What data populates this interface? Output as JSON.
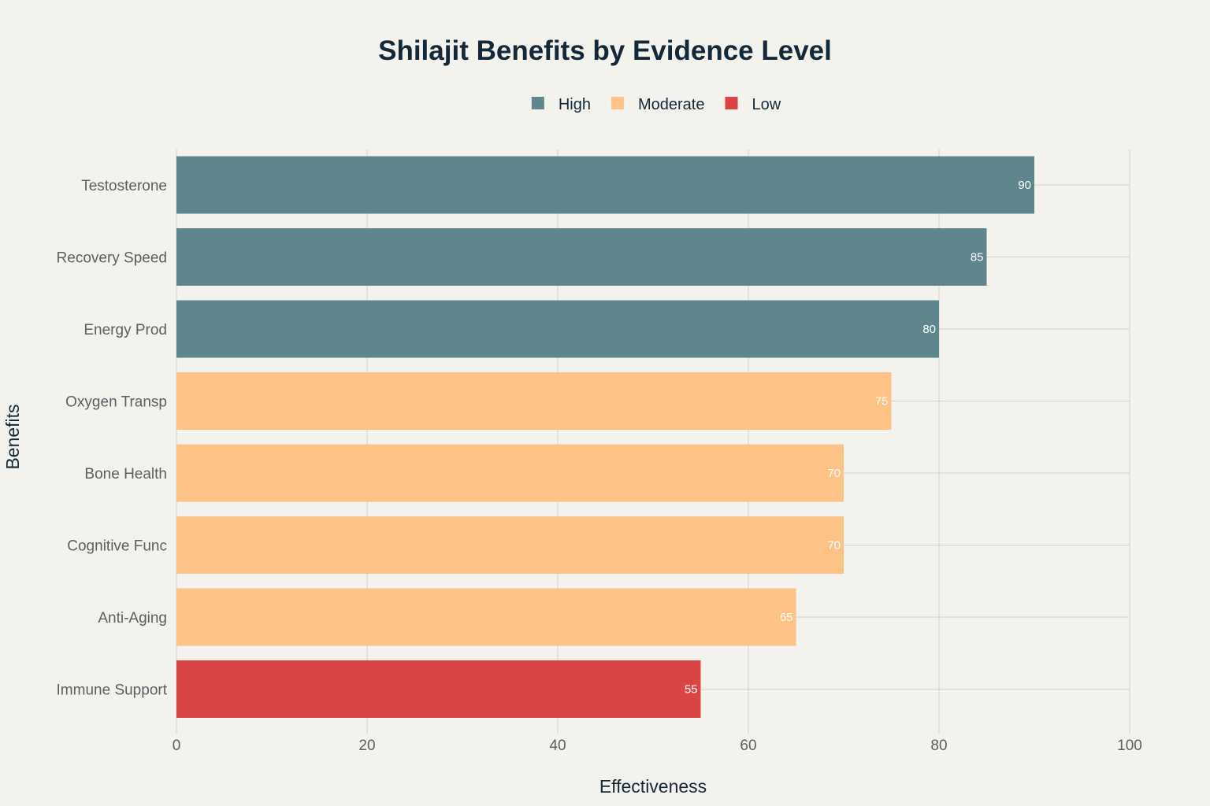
{
  "chart_data": {
    "type": "bar",
    "orientation": "horizontal",
    "title": "Shilajit Benefits by Evidence Level",
    "xlabel": "Effectiveness",
    "ylabel": "Benefits",
    "xlim": [
      0,
      100
    ],
    "xticks": [
      "0",
      "20",
      "40",
      "60",
      "80",
      "100"
    ],
    "grid": true,
    "legend_position": "top-center",
    "legend": [
      {
        "name": "High",
        "color": "#5e868c"
      },
      {
        "name": "Moderate",
        "color": "#fec286"
      },
      {
        "name": "Low",
        "color": "#da4444"
      }
    ],
    "categories": [
      "Testosterone",
      "Recovery Speed",
      "Energy Prod",
      "Oxygen Transp",
      "Bone Health",
      "Cognitive Func",
      "Anti-Aging",
      "Immune Support"
    ],
    "values": [
      90,
      85,
      80,
      75,
      70,
      70,
      65,
      55
    ],
    "evidence": [
      "High",
      "High",
      "High",
      "Moderate",
      "Moderate",
      "Moderate",
      "Moderate",
      "Low"
    ],
    "data_labels": [
      "90",
      "85",
      "80",
      "75",
      "70",
      "70",
      "65",
      "55"
    ]
  }
}
